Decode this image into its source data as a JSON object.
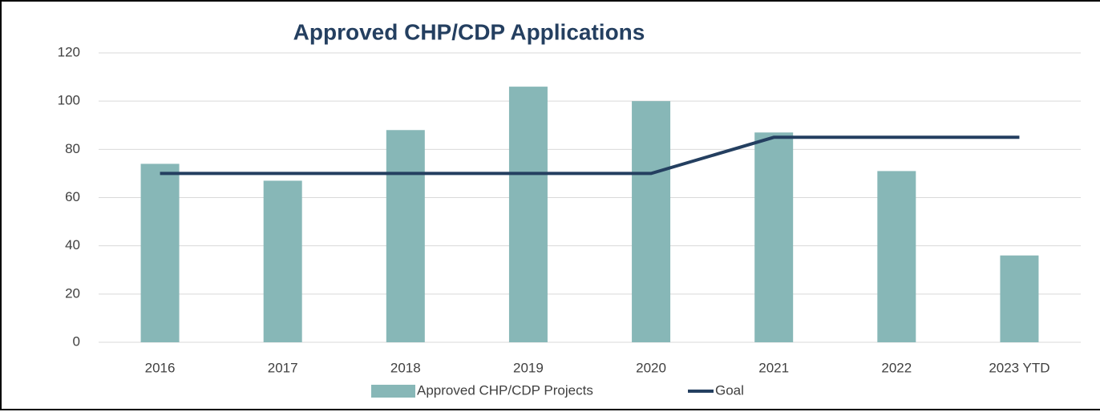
{
  "chart_data": {
    "type": "bar",
    "title": "Approved CHP/CDP Applications",
    "categories": [
      "2016",
      "2017",
      "2018",
      "2019",
      "2020",
      "2021",
      "2022",
      "2023 YTD"
    ],
    "series": [
      {
        "name": "Approved CHP/CDP Projects",
        "type": "bar",
        "color": "#87b7b7",
        "values": [
          74,
          67,
          88,
          106,
          100,
          87,
          71,
          36
        ]
      },
      {
        "name": "Goal",
        "type": "line",
        "color": "#243f60",
        "values": [
          70,
          70,
          70,
          70,
          70,
          85,
          85,
          85
        ]
      }
    ],
    "ylim": [
      0,
      120
    ],
    "yticks": [
      0,
      20,
      40,
      60,
      80,
      100,
      120
    ],
    "grid": true,
    "legend": "bottom"
  }
}
